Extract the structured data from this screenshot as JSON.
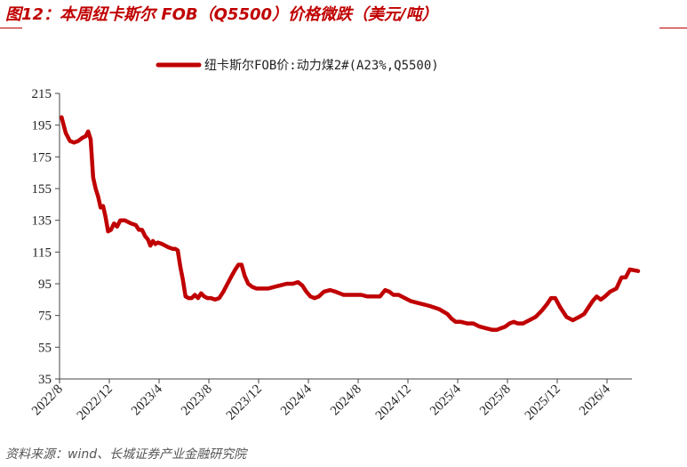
{
  "figure": {
    "title": "图12：本周纽卡斯尔 FOB（Q5500）价格微跌（美元/吨）",
    "source": "资料来源：wind、长城证券产业金融研究院"
  },
  "chart_data": {
    "type": "line",
    "title": "",
    "xlabel": "",
    "ylabel": "",
    "ylim": [
      35,
      215
    ],
    "yticks": [
      35,
      55,
      75,
      95,
      115,
      135,
      155,
      175,
      195,
      215
    ],
    "xticks": [
      "2022/8",
      "2022/12",
      "2023/4",
      "2023/8",
      "2023/12",
      "2024/4",
      "2024/8",
      "2024/12",
      "2025/4",
      "2025/8",
      "2025/12",
      "2026/4"
    ],
    "x_range": [
      "2022/8",
      "2026/6"
    ],
    "grid": false,
    "legend": "top-center",
    "line_color": "#c00000",
    "series": [
      {
        "name": "纽卡斯尔FOB价:动力煤2#(A23%,Q5500)",
        "points": [
          [
            "2022/8",
            200
          ],
          [
            "2022/8",
            190
          ],
          [
            "2022/8",
            185
          ],
          [
            "2022/9",
            184
          ],
          [
            "2022/9",
            185
          ],
          [
            "2022/9",
            187
          ],
          [
            "2022/10",
            188
          ],
          [
            "2022/10",
            191
          ],
          [
            "2022/10",
            186
          ],
          [
            "2022/10",
            162
          ],
          [
            "2022/10",
            155
          ],
          [
            "2022/11",
            150
          ],
          [
            "2022/11",
            143
          ],
          [
            "2022/11",
            144
          ],
          [
            "2022/11",
            137
          ],
          [
            "2022/11",
            128
          ],
          [
            "2022/12",
            129
          ],
          [
            "2022/12",
            133
          ],
          [
            "2022/12",
            131
          ],
          [
            "2022/12",
            135
          ],
          [
            "2023/1",
            135
          ],
          [
            "2023/1",
            133
          ],
          [
            "2023/2",
            132
          ],
          [
            "2023/2",
            129
          ],
          [
            "2023/2",
            129
          ],
          [
            "2023/2",
            125
          ],
          [
            "2023/3",
            123
          ],
          [
            "2023/3",
            119
          ],
          [
            "2023/3",
            122
          ],
          [
            "2023/3",
            120
          ],
          [
            "2023/3",
            121
          ],
          [
            "2023/4",
            120
          ],
          [
            "2023/4",
            118
          ],
          [
            "2023/5",
            117
          ],
          [
            "2023/5",
            117
          ],
          [
            "2023/5",
            116
          ],
          [
            "2023/5",
            106
          ],
          [
            "2023/5",
            98
          ],
          [
            "2023/6",
            87
          ],
          [
            "2023/6",
            86
          ],
          [
            "2023/6",
            86
          ],
          [
            "2023/6",
            88
          ],
          [
            "2023/7",
            86
          ],
          [
            "2023/7",
            89
          ],
          [
            "2023/7",
            87
          ],
          [
            "2023/7",
            86
          ],
          [
            "2023/8",
            86
          ],
          [
            "2023/8",
            85
          ],
          [
            "2023/8",
            86
          ],
          [
            "2023/9",
            90
          ],
          [
            "2023/9",
            95
          ],
          [
            "2023/9",
            100
          ],
          [
            "2023/10",
            104
          ],
          [
            "2023/10",
            107
          ],
          [
            "2023/10",
            107
          ],
          [
            "2023/10",
            100
          ],
          [
            "2023/11",
            95
          ],
          [
            "2023/11",
            93
          ],
          [
            "2023/11",
            92
          ],
          [
            "2023/12",
            92
          ],
          [
            "2023/12",
            92
          ],
          [
            "2024/1",
            93
          ],
          [
            "2024/1",
            94
          ],
          [
            "2024/2",
            95
          ],
          [
            "2024/2",
            95
          ],
          [
            "2024/3",
            96
          ],
          [
            "2024/3",
            94
          ],
          [
            "2024/3",
            90
          ],
          [
            "2024/4",
            87
          ],
          [
            "2024/4",
            86
          ],
          [
            "2024/4",
            87
          ],
          [
            "2024/5",
            90
          ],
          [
            "2024/5",
            91
          ],
          [
            "2024/6",
            90
          ],
          [
            "2024/6",
            89
          ],
          [
            "2024/6",
            88
          ],
          [
            "2024/7",
            88
          ],
          [
            "2024/8",
            88
          ],
          [
            "2024/8",
            87
          ],
          [
            "2024/9",
            87
          ],
          [
            "2024/9",
            87
          ],
          [
            "2024/10",
            91
          ],
          [
            "2024/10",
            90
          ],
          [
            "2024/10",
            88
          ],
          [
            "2024/11",
            88
          ],
          [
            "2024/11",
            86
          ],
          [
            "2024/12",
            84
          ],
          [
            "2024/12",
            83
          ],
          [
            "2025/1",
            82
          ],
          [
            "2025/1",
            81
          ],
          [
            "2025/2",
            79
          ],
          [
            "2025/3",
            76
          ],
          [
            "2025/3",
            73
          ],
          [
            "2025/3",
            71
          ],
          [
            "2025/4",
            71
          ],
          [
            "2025/4",
            70
          ],
          [
            "2025/5",
            70
          ],
          [
            "2025/5",
            68
          ],
          [
            "2025/6",
            67
          ],
          [
            "2025/6",
            66
          ],
          [
            "2025/7",
            66
          ],
          [
            "2025/7",
            67
          ],
          [
            "2025/7",
            68
          ],
          [
            "2025/8",
            70
          ],
          [
            "2025/8",
            71
          ],
          [
            "2025/8",
            70
          ],
          [
            "2025/9",
            70
          ],
          [
            "2025/9",
            72
          ],
          [
            "2025/10",
            74
          ],
          [
            "2025/10",
            78
          ],
          [
            "2025/11",
            82
          ],
          [
            "2025/11",
            86
          ],
          [
            "2025/11",
            86
          ],
          [
            "2025/12",
            80
          ],
          [
            "2025/12",
            74
          ],
          [
            "2026/1",
            72
          ],
          [
            "2026/1",
            74
          ],
          [
            "2026/2",
            76
          ],
          [
            "2026/2",
            80
          ],
          [
            "2026/2",
            84
          ],
          [
            "2026/3",
            87
          ],
          [
            "2026/3",
            85
          ],
          [
            "2026/3",
            87
          ],
          [
            "2026/4",
            90
          ],
          [
            "2026/4",
            92
          ],
          [
            "2026/5",
            99
          ],
          [
            "2026/5",
            99
          ],
          [
            "2026/5",
            104
          ],
          [
            "2026/6",
            103
          ]
        ]
      }
    ]
  }
}
